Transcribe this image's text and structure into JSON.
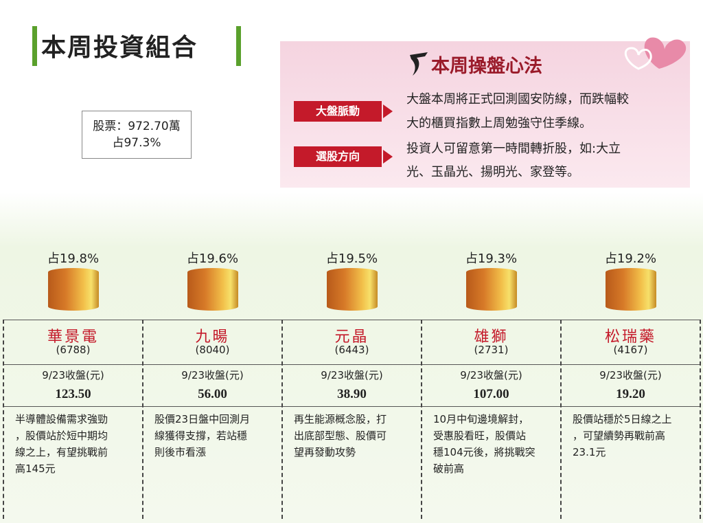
{
  "header": {
    "title": "本周投資組合"
  },
  "summary": {
    "line1": "股票：972.70萬",
    "line2": "占97.3%"
  },
  "panel": {
    "title": "本周操盤心法",
    "items": [
      {
        "label": "大盤脈動",
        "lines": [
          "大盤本周將正式回測國安防線，而跌幅較",
          "大的櫃買指數上周勉強守住季線。"
        ]
      },
      {
        "label": "選股方向",
        "lines": [
          "投資人可留意第一時間轉折股，如:大立",
          "光、玉晶光、揚明光、家登等。"
        ]
      }
    ]
  },
  "stocks": [
    {
      "weight": "占19.8%",
      "name": "華景電",
      "code": "(6788)",
      "close_label": "9/23收盤(元)",
      "close": "123.50",
      "desc_lines": [
        "半導體設備需求強勁",
        "，股價站於短中期均",
        "線之上，有望挑戰前",
        "高145元"
      ]
    },
    {
      "weight": "占19.6%",
      "name": "九暘",
      "code": "(8040)",
      "close_label": "9/23收盤(元)",
      "close": "56.00",
      "desc_lines": [
        "股價23日盤中回測月",
        "線獲得支撐，若站穩",
        "則後市看漲"
      ]
    },
    {
      "weight": "占19.5%",
      "name": "元晶",
      "code": "(6443)",
      "close_label": "9/23收盤(元)",
      "close": "38.90",
      "desc_lines": [
        "再生能源概念股，打",
        "出底部型態、股價可",
        "望再發動攻勢"
      ]
    },
    {
      "weight": "占19.3%",
      "name": "雄獅",
      "code": "(2731)",
      "close_label": "9/23收盤(元)",
      "close": "107.00",
      "desc_lines": [
        "10月中旬邊境解封，",
        "受惠股看旺，股價站",
        "穩104元後，將挑戰突",
        "破前高"
      ]
    },
    {
      "weight": "占19.2%",
      "name": "松瑞藥",
      "code": "(4167)",
      "close_label": "9/23收盤(元)",
      "close": "19.20",
      "desc_lines": [
        "股價站穩於5日線之上",
        "，可望續勢再戰前高",
        "23.1元"
      ]
    }
  ]
}
